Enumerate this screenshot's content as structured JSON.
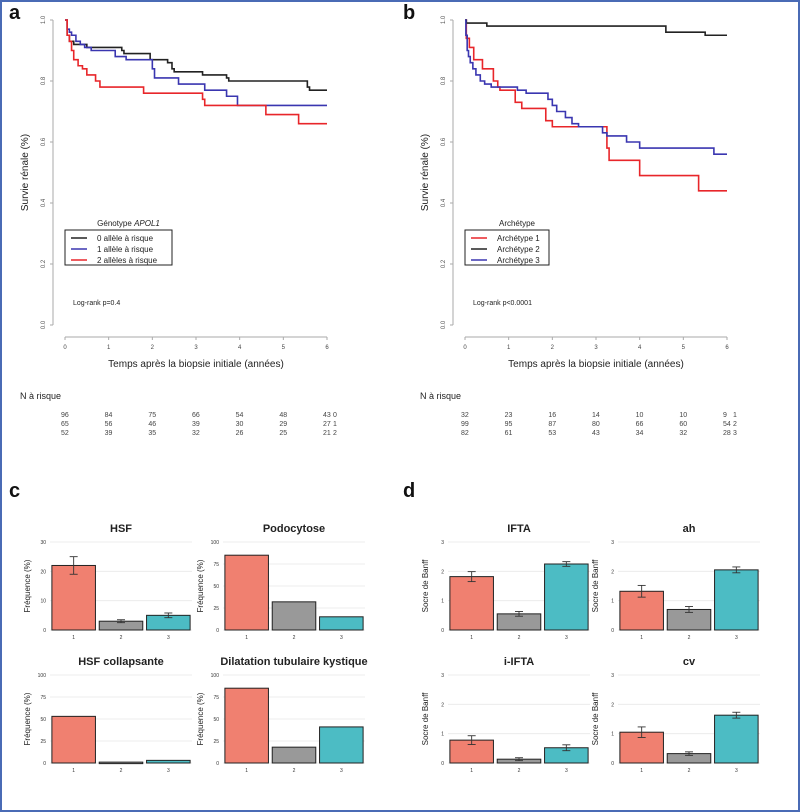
{
  "panels": {
    "a": "a",
    "b": "b",
    "c": "c",
    "d": "d"
  },
  "colors": {
    "red": "#e8262a",
    "black": "#222222",
    "blue": "#3a36b0",
    "salmon": "#f08070",
    "gray": "#999999",
    "teal": "#4cbcc4",
    "frame": "#4a6bb5"
  },
  "chart_data": [
    {
      "id": "a",
      "type": "line",
      "step": true,
      "title": "",
      "xlabel": "Temps après la biopsie initiale (années)",
      "ylabel": "Survie rénale (%)",
      "xlim": [
        0,
        6
      ],
      "ylim": [
        0,
        1
      ],
      "xticks": [
        "0",
        "1",
        "2",
        "3",
        "4",
        "5",
        "6"
      ],
      "yticks": [
        "0.0",
        "0.2",
        "0.4",
        "0.6",
        "0.8",
        "1.0"
      ],
      "legend_title": "Génotype APOL1",
      "legend_title_plain": "Génotype ",
      "legend_title_italic": "APOL1",
      "legend_position": "left",
      "annotation": "Log-rank p=0.4",
      "series": [
        {
          "name": "0 allèle à risque",
          "color": "#222222",
          "x": [
            0,
            0.05,
            0.1,
            0.2,
            0.3,
            0.5,
            0.7,
            1.2,
            1.3,
            1.35,
            1.4,
            1.9,
            1.95,
            2.0,
            2.35,
            2.45,
            2.5,
            2.5,
            3.15,
            3.7,
            3.75,
            5.5,
            5.55,
            5.6,
            6.0
          ],
          "y": [
            1.0,
            0.95,
            0.93,
            0.92,
            0.92,
            0.91,
            0.91,
            0.91,
            0.9,
            0.89,
            0.89,
            0.89,
            0.87,
            0.87,
            0.86,
            0.84,
            0.83,
            0.83,
            0.82,
            0.81,
            0.8,
            0.8,
            0.78,
            0.77,
            0.77
          ]
        },
        {
          "name": "1 allèle à risque",
          "color": "#3a36b0",
          "x": [
            0,
            0.05,
            0.1,
            0.15,
            0.25,
            0.35,
            0.45,
            0.6,
            1.15,
            1.4,
            1.95,
            2.0,
            2.05,
            2.6,
            3.2,
            3.7,
            3.95,
            4.0,
            6.0
          ],
          "y": [
            1.0,
            0.97,
            0.96,
            0.95,
            0.93,
            0.92,
            0.91,
            0.9,
            0.88,
            0.87,
            0.87,
            0.84,
            0.81,
            0.79,
            0.77,
            0.75,
            0.72,
            0.72,
            0.72
          ]
        },
        {
          "name": "2 allèles à risque",
          "color": "#e8262a",
          "x": [
            0,
            0.05,
            0.1,
            0.15,
            0.2,
            0.3,
            0.4,
            0.5,
            0.7,
            0.8,
            1.8,
            3.15,
            3.2,
            4.6,
            5.35,
            6.0
          ],
          "y": [
            1.0,
            0.95,
            0.93,
            0.9,
            0.87,
            0.85,
            0.84,
            0.82,
            0.8,
            0.78,
            0.76,
            0.74,
            0.72,
            0.69,
            0.66,
            0.66
          ]
        }
      ],
      "n_at_risk": {
        "label": "N à risque",
        "rows": [
          {
            "values": [
              "96",
              "84",
              "75",
              "66",
              "54",
              "48",
              "43"
            ],
            "group": "0"
          },
          {
            "values": [
              "65",
              "56",
              "46",
              "39",
              "30",
              "29",
              "27"
            ],
            "group": "1"
          },
          {
            "values": [
              "52",
              "39",
              "35",
              "32",
              "26",
              "25",
              "21"
            ],
            "group": "2"
          }
        ]
      }
    },
    {
      "id": "b",
      "type": "line",
      "step": true,
      "title": "",
      "xlabel": "Temps après la biopsie initiale (années)",
      "ylabel": "Survie rénale (%)",
      "xlim": [
        0,
        6
      ],
      "ylim": [
        0,
        1
      ],
      "xticks": [
        "0",
        "1",
        "2",
        "3",
        "4",
        "5",
        "6"
      ],
      "yticks": [
        "0.0",
        "0.2",
        "0.4",
        "0.6",
        "0.8",
        "1.0"
      ],
      "legend_title": "Archétype",
      "legend_position": "left",
      "annotation": "Log-rank p<0.0001",
      "series": [
        {
          "name": "Archétype 1",
          "color": "#e8262a",
          "x": [
            0,
            0.03,
            0.1,
            0.2,
            0.4,
            0.65,
            0.75,
            0.8,
            1.15,
            1.3,
            1.85,
            2.0,
            3.25,
            3.3,
            4.0,
            5.35,
            6.0
          ],
          "y": [
            1.0,
            0.94,
            0.91,
            0.87,
            0.84,
            0.8,
            0.78,
            0.77,
            0.73,
            0.71,
            0.67,
            0.65,
            0.58,
            0.54,
            0.49,
            0.44,
            0.44
          ]
        },
        {
          "name": "Archétype 2",
          "color": "#222222",
          "x": [
            0,
            0.03,
            0.5,
            4.6,
            5.5,
            6.0
          ],
          "y": [
            1.0,
            0.99,
            0.98,
            0.96,
            0.95,
            0.95
          ]
        },
        {
          "name": "Archétype 3",
          "color": "#3a36b0",
          "x": [
            0,
            0.02,
            0.05,
            0.08,
            0.12,
            0.18,
            0.25,
            0.35,
            0.45,
            0.6,
            0.8,
            1.2,
            1.4,
            1.9,
            2.0,
            2.1,
            2.3,
            2.45,
            2.6,
            3.15,
            3.25,
            3.7,
            4.0,
            5.7,
            6.0
          ],
          "y": [
            1.0,
            0.95,
            0.9,
            0.88,
            0.86,
            0.84,
            0.82,
            0.8,
            0.79,
            0.78,
            0.78,
            0.77,
            0.76,
            0.74,
            0.72,
            0.7,
            0.68,
            0.66,
            0.65,
            0.63,
            0.62,
            0.6,
            0.58,
            0.56,
            0.56
          ]
        }
      ],
      "n_at_risk": {
        "label": "N à risque",
        "rows": [
          {
            "values": [
              "32",
              "23",
              "16",
              "14",
              "10",
              "10",
              "9"
            ],
            "group": "1"
          },
          {
            "values": [
              "99",
              "95",
              "87",
              "80",
              "66",
              "60",
              "54"
            ],
            "group": "2"
          },
          {
            "values": [
              "82",
              "61",
              "53",
              "43",
              "34",
              "32",
              "28"
            ],
            "group": "3"
          }
        ]
      }
    },
    {
      "id": "c1",
      "type": "bar",
      "title": "HSF",
      "ylabel": "Fréquence (%)",
      "categories": [
        "1",
        "2",
        "3"
      ],
      "values": [
        22,
        3,
        5
      ],
      "errors": [
        3,
        0.5,
        0.8
      ],
      "ylim": [
        0,
        30
      ],
      "yticks": [
        "0",
        "10",
        "20",
        "30"
      ]
    },
    {
      "id": "c2",
      "type": "bar",
      "title": "Podocytose",
      "ylabel": "Fréquence (%)",
      "categories": [
        "1",
        "2",
        "3"
      ],
      "values": [
        85,
        32,
        15
      ],
      "errors": null,
      "ylim": [
        0,
        100
      ],
      "yticks": [
        "0",
        "25",
        "50",
        "75",
        "100"
      ]
    },
    {
      "id": "c3",
      "type": "bar",
      "title": "HSF collapsante",
      "ylabel": "Fréquence (%)",
      "categories": [
        "1",
        "2",
        "3"
      ],
      "values": [
        53,
        1,
        3
      ],
      "errors": null,
      "ylim": [
        0,
        100
      ],
      "yticks": [
        "0",
        "25",
        "50",
        "75",
        "100"
      ]
    },
    {
      "id": "c4",
      "type": "bar",
      "title": "Dilatation tubulaire kystique",
      "ylabel": "Fréquence (%)",
      "categories": [
        "1",
        "2",
        "3"
      ],
      "values": [
        85,
        18,
        41
      ],
      "errors": null,
      "ylim": [
        0,
        100
      ],
      "yticks": [
        "0",
        "25",
        "50",
        "75",
        "100"
      ]
    },
    {
      "id": "d1",
      "type": "bar",
      "title": "IFTA",
      "ylabel": "Socre de Banff",
      "categories": [
        "1",
        "2",
        "3"
      ],
      "values": [
        1.82,
        0.55,
        2.25
      ],
      "errors": [
        0.17,
        0.08,
        0.08
      ],
      "ylim": [
        0,
        3
      ],
      "yticks": [
        "0",
        "1",
        "2",
        "3"
      ]
    },
    {
      "id": "d2",
      "type": "bar",
      "title": "ah",
      "ylabel": "Socre de Banff",
      "categories": [
        "1",
        "2",
        "3"
      ],
      "values": [
        1.32,
        0.7,
        2.05
      ],
      "errors": [
        0.2,
        0.1,
        0.1
      ],
      "ylim": [
        0,
        3
      ],
      "yticks": [
        "0",
        "1",
        "2",
        "3"
      ]
    },
    {
      "id": "d3",
      "type": "bar",
      "title": "i-IFTA",
      "ylabel": "Socre de Banff",
      "categories": [
        "1",
        "2",
        "3"
      ],
      "values": [
        0.78,
        0.13,
        0.52
      ],
      "errors": [
        0.15,
        0.05,
        0.1
      ],
      "ylim": [
        0,
        3
      ],
      "yticks": [
        "0",
        "1",
        "2",
        "3"
      ]
    },
    {
      "id": "d4",
      "type": "bar",
      "title": "cv",
      "ylabel": "Socre de Banff",
      "categories": [
        "1",
        "2",
        "3"
      ],
      "values": [
        1.05,
        0.32,
        1.63
      ],
      "errors": [
        0.18,
        0.06,
        0.1
      ],
      "ylim": [
        0,
        3
      ],
      "yticks": [
        "0",
        "1",
        "2",
        "3"
      ]
    }
  ]
}
